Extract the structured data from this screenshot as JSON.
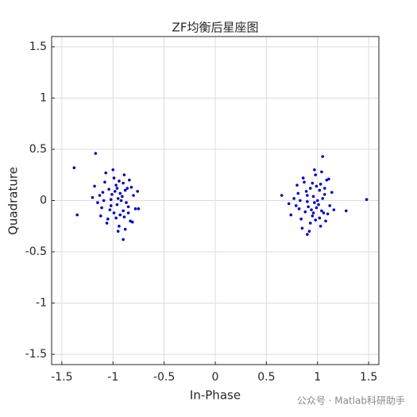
{
  "chart_data": {
    "type": "scatter",
    "title": "ZF均衡后星座图",
    "x_label": "In-Phase",
    "y_label": "Quadrature",
    "watermark": "公众号 · Matlab科研助手",
    "color": "#0000c8",
    "grid": true,
    "xlim": [
      -1.6,
      1.6
    ],
    "ylim": [
      -1.6,
      1.6
    ],
    "xticks": [
      -1.5,
      -1,
      -0.5,
      0,
      0.5,
      1,
      1.5
    ],
    "yticks": [
      -1.5,
      -1,
      -0.5,
      0,
      0.5,
      1,
      1.5
    ],
    "x": [
      -0.95,
      -1.02,
      -0.88,
      -1.1,
      -0.85,
      -0.97,
      -1.05,
      -0.92,
      -0.8,
      -1.15,
      -0.99,
      -0.9,
      -1.08,
      -0.86,
      -0.94,
      -1.01,
      -0.78,
      -1.12,
      -0.96,
      -0.89,
      -1.04,
      -0.93,
      -0.83,
      -1.18,
      -1.0,
      -0.91,
      -0.87,
      -1.06,
      -0.98,
      -0.84,
      -1.09,
      -0.95,
      -0.82,
      -1.13,
      -0.9,
      -1.03,
      -0.97,
      -0.88,
      -1.2,
      -0.76,
      -0.93,
      -1.07,
      -0.99,
      -0.85,
      -1.11,
      -0.94,
      -0.89,
      -1.02,
      -0.81,
      -0.96,
      -1.38,
      -1.17,
      -1.35,
      -0.9,
      -0.75,
      0.97,
      0.9,
      1.04,
      0.82,
      1.07,
      0.95,
      0.87,
      1.0,
      1.12,
      0.77,
      0.93,
      1.02,
      0.84,
      1.06,
      0.98,
      0.91,
      1.14,
      0.8,
      0.96,
      1.03,
      0.88,
      0.99,
      1.09,
      0.74,
      0.92,
      1.01,
      1.05,
      0.86,
      0.94,
      1.08,
      0.83,
      0.97,
      1.1,
      0.79,
      1.02,
      0.89,
      0.95,
      1.04,
      0.72,
      1.16,
      0.99,
      0.85,
      0.93,
      1.07,
      0.81,
      0.98,
      1.03,
      0.9,
      1.11,
      0.96,
      1.48,
      1.05,
      0.65,
      0.9,
      1.28
    ],
    "values": [
      0.02,
      -0.05,
      0.1,
      0.08,
      -0.12,
      0.15,
      -0.18,
      0.0,
      0.05,
      -0.02,
      0.22,
      -0.1,
      0.18,
      0.12,
      -0.25,
      0.06,
      -0.08,
      -0.15,
      -0.04,
      0.25,
      0.11,
      -0.14,
      -0.2,
      0.14,
      0.3,
      0.04,
      -0.02,
      -0.22,
      0.09,
      0.2,
      0.0,
      -0.3,
      0.13,
      0.05,
      0.17,
      -0.09,
      -0.17,
      -0.28,
      0.03,
      0.09,
      0.07,
      0.27,
      -0.12,
      -0.06,
      -0.07,
      0.19,
      -0.16,
      0.01,
      -0.21,
      0.12,
      0.32,
      0.46,
      -0.14,
      -0.38,
      -0.08,
      -0.02,
      0.05,
      -0.1,
      -0.08,
      0.12,
      -0.15,
      0.18,
      0.0,
      -0.05,
      0.02,
      -0.22,
      0.1,
      -0.18,
      -0.12,
      0.25,
      -0.06,
      0.08,
      0.15,
      0.04,
      -0.25,
      -0.11,
      0.14,
      0.2,
      -0.14,
      -0.3,
      -0.04,
      0.02,
      0.22,
      -0.09,
      -0.2,
      0.0,
      0.3,
      -0.13,
      -0.05,
      -0.17,
      0.09,
      0.17,
      0.28,
      -0.03,
      -0.09,
      -0.07,
      -0.27,
      0.12,
      0.06,
      0.07,
      -0.19,
      0.16,
      -0.01,
      0.21,
      -0.12,
      0.01,
      0.43,
      0.05,
      -0.33,
      -0.1
    ]
  }
}
